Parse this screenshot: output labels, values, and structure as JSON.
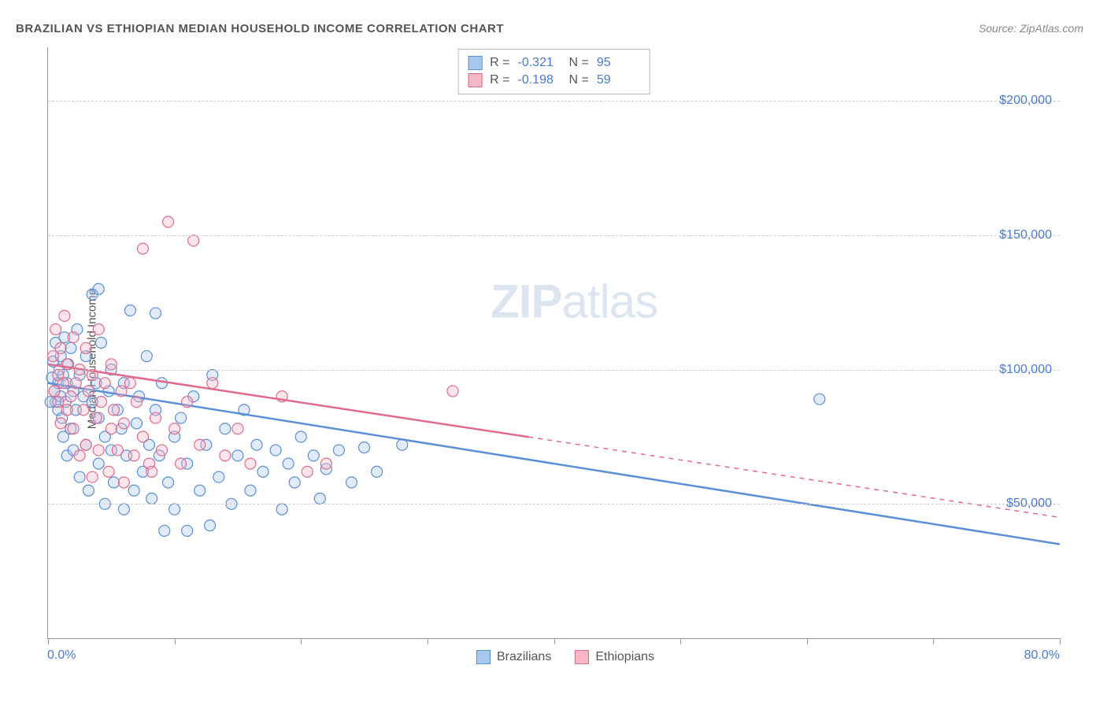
{
  "title": "BRAZILIAN VS ETHIOPIAN MEDIAN HOUSEHOLD INCOME CORRELATION CHART",
  "source": "Source: ZipAtlas.com",
  "watermark": {
    "part1": "ZIP",
    "part2": "atlas"
  },
  "chart": {
    "type": "scatter",
    "ylabel": "Median Household Income",
    "xlim": [
      0,
      80
    ],
    "ylim": [
      0,
      220000
    ],
    "x_axis_labels": {
      "left": "0.0%",
      "right": "80.0%"
    },
    "y_gridlines": [
      50000,
      100000,
      150000,
      200000
    ],
    "y_tick_labels": [
      "$50,000",
      "$100,000",
      "$150,000",
      "$200,000"
    ],
    "x_ticks": [
      0,
      10,
      20,
      30,
      40,
      50,
      60,
      70,
      80
    ],
    "background_color": "#ffffff",
    "grid_color": "#cccccc",
    "axis_color": "#999999",
    "tick_label_color": "#4a7bd0",
    "marker_radius": 7,
    "marker_stroke_width": 1.2,
    "marker_fill_opacity": 0.35,
    "series": [
      {
        "name": "Brazilians",
        "color_fill": "#a8c7ed",
        "color_stroke": "#5b8fd6",
        "R": "-0.321",
        "N": "95",
        "trend": {
          "x1": 0,
          "y1": 95000,
          "x2": 80,
          "y2": 35000,
          "solid_until_x": 80,
          "width": 2.5
        },
        "points": [
          [
            0.3,
            97000
          ],
          [
            0.4,
            103000
          ],
          [
            0.5,
            92000
          ],
          [
            0.6,
            88000
          ],
          [
            0.6,
            110000
          ],
          [
            0.8,
            95000
          ],
          [
            0.8,
            85000
          ],
          [
            0.9,
            100000
          ],
          [
            1.0,
            90000
          ],
          [
            1.0,
            105000
          ],
          [
            1.1,
            82000
          ],
          [
            1.2,
            98000
          ],
          [
            1.2,
            75000
          ],
          [
            1.3,
            112000
          ],
          [
            1.4,
            88000
          ],
          [
            1.5,
            95000
          ],
          [
            1.5,
            68000
          ],
          [
            1.6,
            102000
          ],
          [
            1.8,
            78000
          ],
          [
            1.8,
            108000
          ],
          [
            2.0,
            92000
          ],
          [
            2.0,
            70000
          ],
          [
            2.2,
            85000
          ],
          [
            2.3,
            115000
          ],
          [
            2.5,
            98000
          ],
          [
            2.5,
            60000
          ],
          [
            2.8,
            90000
          ],
          [
            3.0,
            72000
          ],
          [
            3.0,
            105000
          ],
          [
            3.2,
            55000
          ],
          [
            3.5,
            88000
          ],
          [
            3.5,
            128000
          ],
          [
            3.8,
            95000
          ],
          [
            4.0,
            65000
          ],
          [
            4.0,
            82000
          ],
          [
            4.2,
            110000
          ],
          [
            4.5,
            75000
          ],
          [
            4.5,
            50000
          ],
          [
            4.8,
            92000
          ],
          [
            5.0,
            70000
          ],
          [
            5.0,
            100000
          ],
          [
            5.2,
            58000
          ],
          [
            5.5,
            85000
          ],
          [
            5.8,
            78000
          ],
          [
            6.0,
            48000
          ],
          [
            6.0,
            95000
          ],
          [
            6.2,
            68000
          ],
          [
            6.5,
            122000
          ],
          [
            6.8,
            55000
          ],
          [
            7.0,
            80000
          ],
          [
            7.2,
            90000
          ],
          [
            7.5,
            62000
          ],
          [
            7.8,
            105000
          ],
          [
            8.0,
            72000
          ],
          [
            8.2,
            52000
          ],
          [
            8.5,
            85000
          ],
          [
            8.5,
            121000
          ],
          [
            8.8,
            68000
          ],
          [
            9.0,
            95000
          ],
          [
            9.5,
            58000
          ],
          [
            10.0,
            75000
          ],
          [
            10.0,
            48000
          ],
          [
            10.5,
            82000
          ],
          [
            11.0,
            65000
          ],
          [
            11.5,
            90000
          ],
          [
            12.0,
            55000
          ],
          [
            12.5,
            72000
          ],
          [
            13.0,
            98000
          ],
          [
            13.5,
            60000
          ],
          [
            14.0,
            78000
          ],
          [
            14.5,
            50000
          ],
          [
            15.0,
            68000
          ],
          [
            15.5,
            85000
          ],
          [
            16.0,
            55000
          ],
          [
            16.5,
            72000
          ],
          [
            17.0,
            62000
          ],
          [
            18.0,
            70000
          ],
          [
            18.5,
            48000
          ],
          [
            19.0,
            65000
          ],
          [
            19.5,
            58000
          ],
          [
            20.0,
            75000
          ],
          [
            21.0,
            68000
          ],
          [
            21.5,
            52000
          ],
          [
            22.0,
            63000
          ],
          [
            23.0,
            70000
          ],
          [
            24.0,
            58000
          ],
          [
            25.0,
            71000
          ],
          [
            26.0,
            62000
          ],
          [
            28.0,
            72000
          ],
          [
            11.0,
            40000
          ],
          [
            12.8,
            42000
          ],
          [
            9.2,
            40000
          ],
          [
            4.0,
            130000
          ],
          [
            61.0,
            89000
          ],
          [
            0.2,
            88000
          ]
        ]
      },
      {
        "name": "Ethiopians",
        "color_fill": "#f5b8c5",
        "color_stroke": "#e06b8a",
        "R": "-0.198",
        "N": "59",
        "trend": {
          "x1": 0,
          "y1": 102000,
          "x2": 80,
          "y2": 45000,
          "solid_until_x": 38,
          "width": 2.5
        },
        "points": [
          [
            0.4,
            105000
          ],
          [
            0.5,
            92000
          ],
          [
            0.6,
            115000
          ],
          [
            0.8,
            98000
          ],
          [
            0.8,
            88000
          ],
          [
            1.0,
            108000
          ],
          [
            1.0,
            80000
          ],
          [
            1.2,
            95000
          ],
          [
            1.3,
            120000
          ],
          [
            1.5,
            85000
          ],
          [
            1.5,
            102000
          ],
          [
            1.8,
            90000
          ],
          [
            2.0,
            78000
          ],
          [
            2.0,
            112000
          ],
          [
            2.2,
            95000
          ],
          [
            2.5,
            68000
          ],
          [
            2.5,
            100000
          ],
          [
            2.8,
            85000
          ],
          [
            3.0,
            72000
          ],
          [
            3.0,
            108000
          ],
          [
            3.2,
            92000
          ],
          [
            3.5,
            60000
          ],
          [
            3.5,
            98000
          ],
          [
            3.8,
            82000
          ],
          [
            4.0,
            115000
          ],
          [
            4.0,
            70000
          ],
          [
            4.2,
            88000
          ],
          [
            4.5,
            95000
          ],
          [
            4.8,
            62000
          ],
          [
            5.0,
            78000
          ],
          [
            5.0,
            102000
          ],
          [
            5.2,
            85000
          ],
          [
            5.5,
            70000
          ],
          [
            5.8,
            92000
          ],
          [
            6.0,
            58000
          ],
          [
            6.0,
            80000
          ],
          [
            6.5,
            95000
          ],
          [
            6.8,
            68000
          ],
          [
            7.0,
            88000
          ],
          [
            7.5,
            75000
          ],
          [
            7.5,
            145000
          ],
          [
            8.0,
            65000
          ],
          [
            8.2,
            62000
          ],
          [
            8.5,
            82000
          ],
          [
            9.0,
            70000
          ],
          [
            9.5,
            155000
          ],
          [
            10.0,
            78000
          ],
          [
            10.5,
            65000
          ],
          [
            11.0,
            88000
          ],
          [
            11.5,
            148000
          ],
          [
            12.0,
            72000
          ],
          [
            13.0,
            95000
          ],
          [
            14.0,
            68000
          ],
          [
            15.0,
            78000
          ],
          [
            16.0,
            65000
          ],
          [
            18.5,
            90000
          ],
          [
            20.5,
            62000
          ],
          [
            22.0,
            65000
          ],
          [
            32.0,
            92000
          ]
        ]
      }
    ]
  },
  "legend": {
    "items": [
      "Brazilians",
      "Ethiopians"
    ]
  }
}
